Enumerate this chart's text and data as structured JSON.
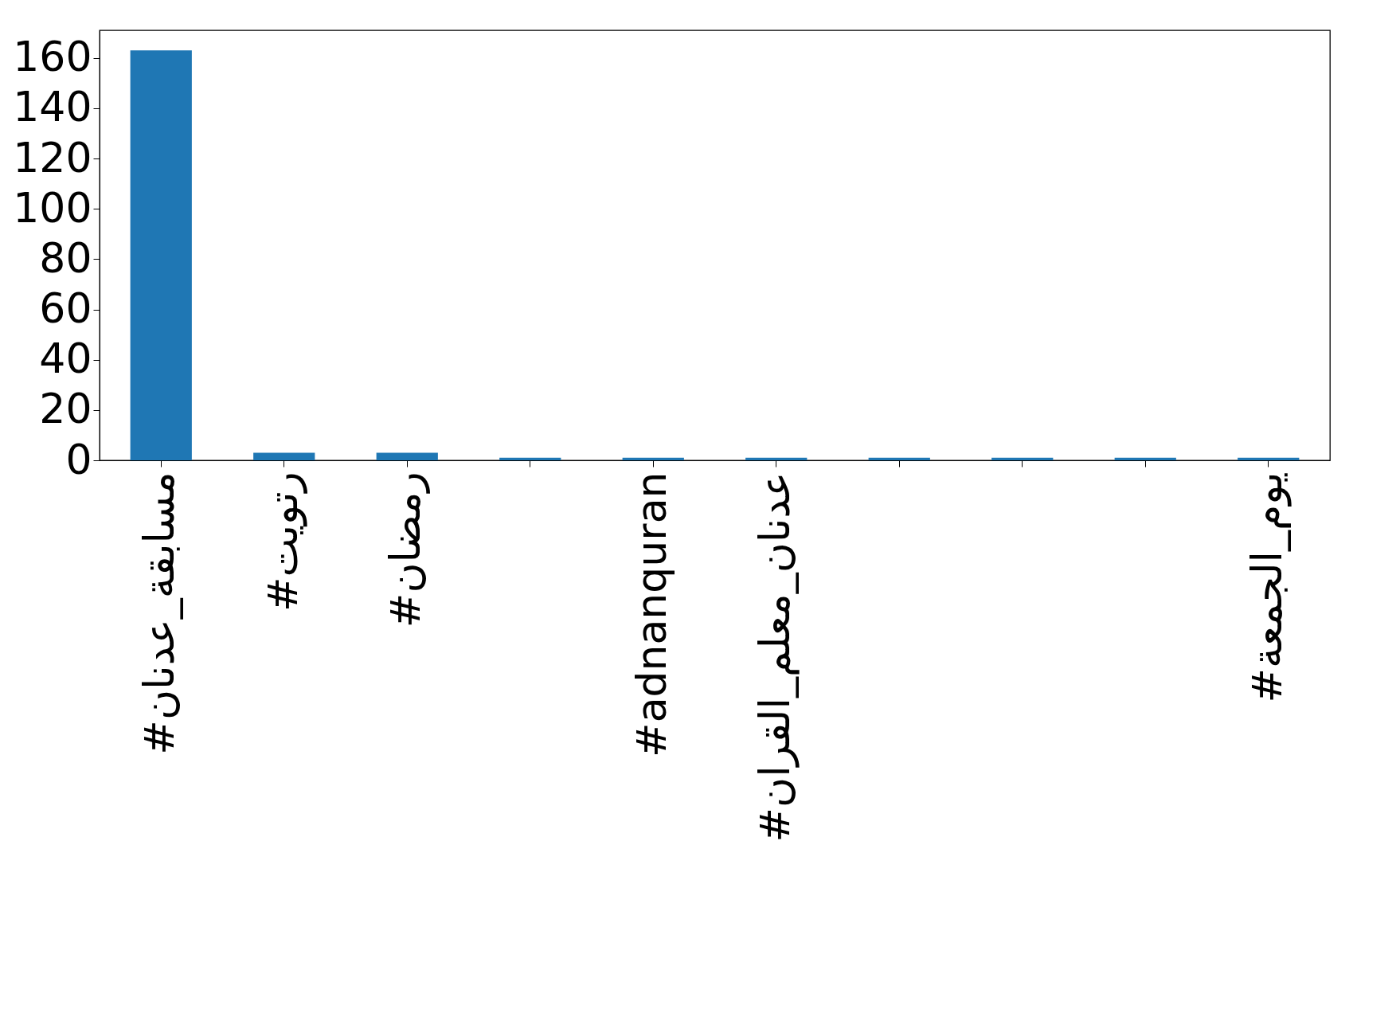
{
  "chart_data": {
    "type": "bar",
    "categories": [
      "#مسابقة_عدنان",
      "#رتويت",
      "#رمضان",
      null,
      "#adnanquran",
      "#عدنان_معلم_القران",
      null,
      null,
      null,
      "#يوم_الجمعة"
    ],
    "values": [
      163,
      3,
      3,
      1,
      1,
      1,
      1,
      1,
      1,
      1
    ],
    "color": "#1f77b4",
    "ylim": [
      0,
      171
    ],
    "yticks": [
      0,
      20,
      40,
      60,
      80,
      100,
      120,
      140,
      160
    ],
    "grid": false
  }
}
